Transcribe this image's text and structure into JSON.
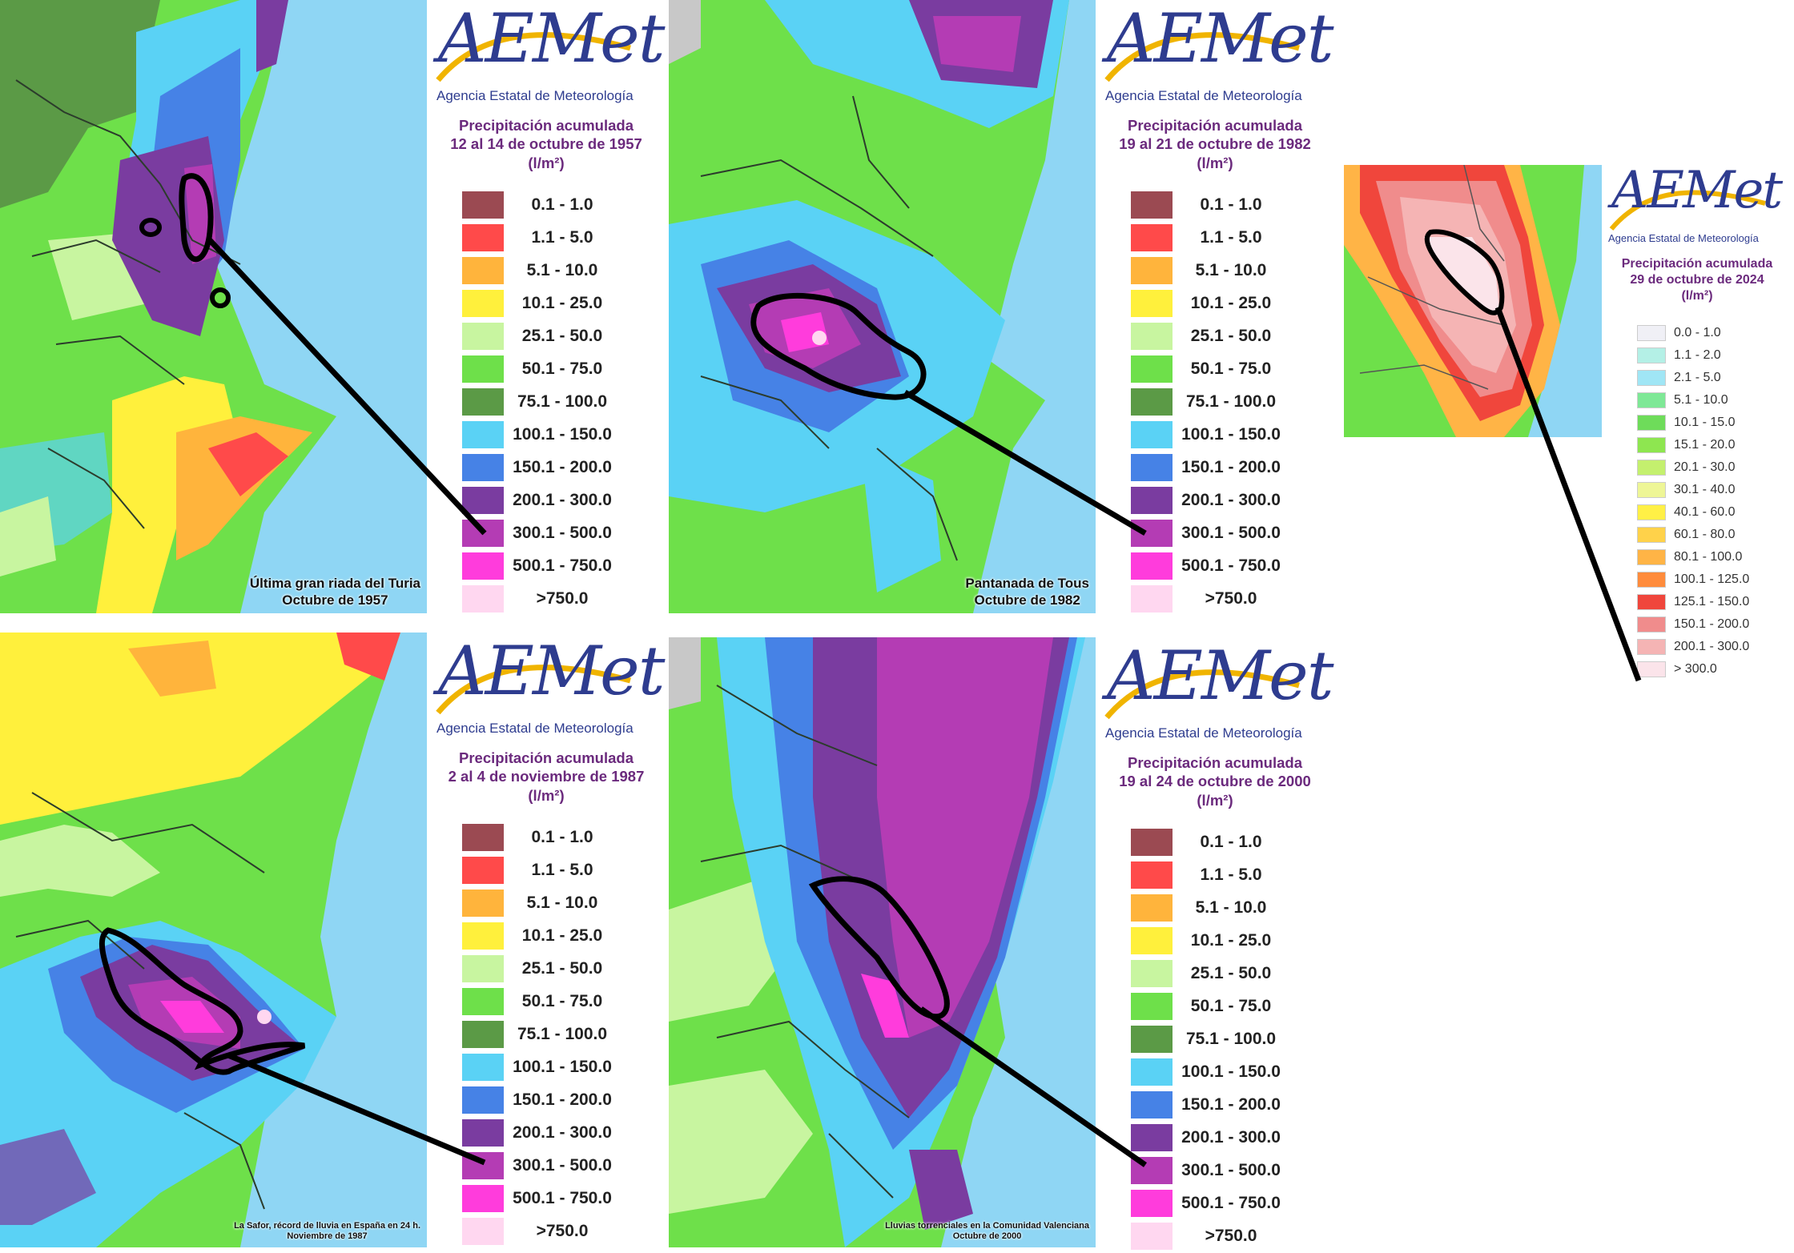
{
  "brand": {
    "logo_text": "AEMet",
    "agency": "Agencia Estatal de Meteorología",
    "accent_color": "#6b2a7d",
    "logo_color": "#2e3c8f",
    "swoosh_color": "#f0b400"
  },
  "legend_scale": [
    {
      "label": "0.1 - 1.0",
      "color": "#9b4a52"
    },
    {
      "label": "1.1 - 5.0",
      "color": "#ff4a4a"
    },
    {
      "label": "5.1 - 10.0",
      "color": "#ffb43c"
    },
    {
      "label": "10.1 - 25.0",
      "color": "#fff03c"
    },
    {
      "label": "25.1 - 50.0",
      "color": "#c8f5a0"
    },
    {
      "label": "50.1 - 75.0",
      "color": "#6ee04a"
    },
    {
      "label": "75.1 - 100.0",
      "color": "#5b9a46"
    },
    {
      "label": "100.1 - 150.0",
      "color": "#5ad2f5"
    },
    {
      "label": "150.1 - 200.0",
      "color": "#4682e6"
    },
    {
      "label": "200.1 - 300.0",
      "color": "#7a3ca0"
    },
    {
      "label": "300.1 - 500.0",
      "color": "#b43cb4"
    },
    {
      "label": "500.1 - 750.0",
      "color": "#ff3cdc"
    },
    {
      "label": ">750.0",
      "color": "#ffd7f0"
    }
  ],
  "panels": [
    {
      "title_line1": "Precipitación acumulada",
      "title_line2": "12 al 14 de octubre de 1957",
      "units": "(l/m²)",
      "caption_line1": "Última gran riada del Turia",
      "caption_line2": "Octubre de 1957"
    },
    {
      "title_line1": "Precipitación acumulada",
      "title_line2": "19 al 21 de octubre de 1982",
      "units": "(l/m²)",
      "caption_line1": "Pantanada de Tous",
      "caption_line2": "Octubre de 1982"
    },
    {
      "title_line1": "Precipitación acumulada",
      "title_line2": "2 al 4 de noviembre de 1987",
      "units": "(l/m²)",
      "caption_line1": "La Safor, récord de lluvia  en España  en 24 h.",
      "caption_line2": "Noviembre de 1987"
    },
    {
      "title_line1": "Precipitación acumulada",
      "title_line2": "19 al 24 de octubre de 2000",
      "units": "(l/m²)",
      "caption_line1": "Lluvias torrenciales en la Comunidad Valenciana",
      "caption_line2": "Octubre de 2000"
    }
  ],
  "panel_2024": {
    "title_line1": "Precipitación acumulada",
    "title_line2": "29 de octubre de 2024",
    "units": "(l/m²)",
    "legend": [
      {
        "label": "0.0 - 1.0",
        "color": "#f0f0f6"
      },
      {
        "label": "1.1 - 2.0",
        "color": "#b4f0e6"
      },
      {
        "label": "2.1 - 5.0",
        "color": "#a0e6f5"
      },
      {
        "label": "5.1 - 10.0",
        "color": "#7ee896"
      },
      {
        "label": "10.1 - 15.0",
        "color": "#6edc5a"
      },
      {
        "label": "15.1 - 20.0",
        "color": "#8ee650"
      },
      {
        "label": "20.1 - 30.0",
        "color": "#c4f06e"
      },
      {
        "label": "30.1 - 40.0",
        "color": "#eef696"
      },
      {
        "label": "40.1 - 60.0",
        "color": "#fff046"
      },
      {
        "label": "60.1 - 80.0",
        "color": "#ffd24a"
      },
      {
        "label": "80.1 - 100.0",
        "color": "#ffb446"
      },
      {
        "label": "100.1 - 125.0",
        "color": "#ff8c3c"
      },
      {
        "label": "125.1 - 150.0",
        "color": "#f0463c"
      },
      {
        "label": "150.1 - 200.0",
        "color": "#f08c8c"
      },
      {
        "label": "200.1 - 300.0",
        "color": "#f5b4b4"
      },
      {
        "label": "> 300.0",
        "color": "#fbe4ea"
      }
    ]
  }
}
